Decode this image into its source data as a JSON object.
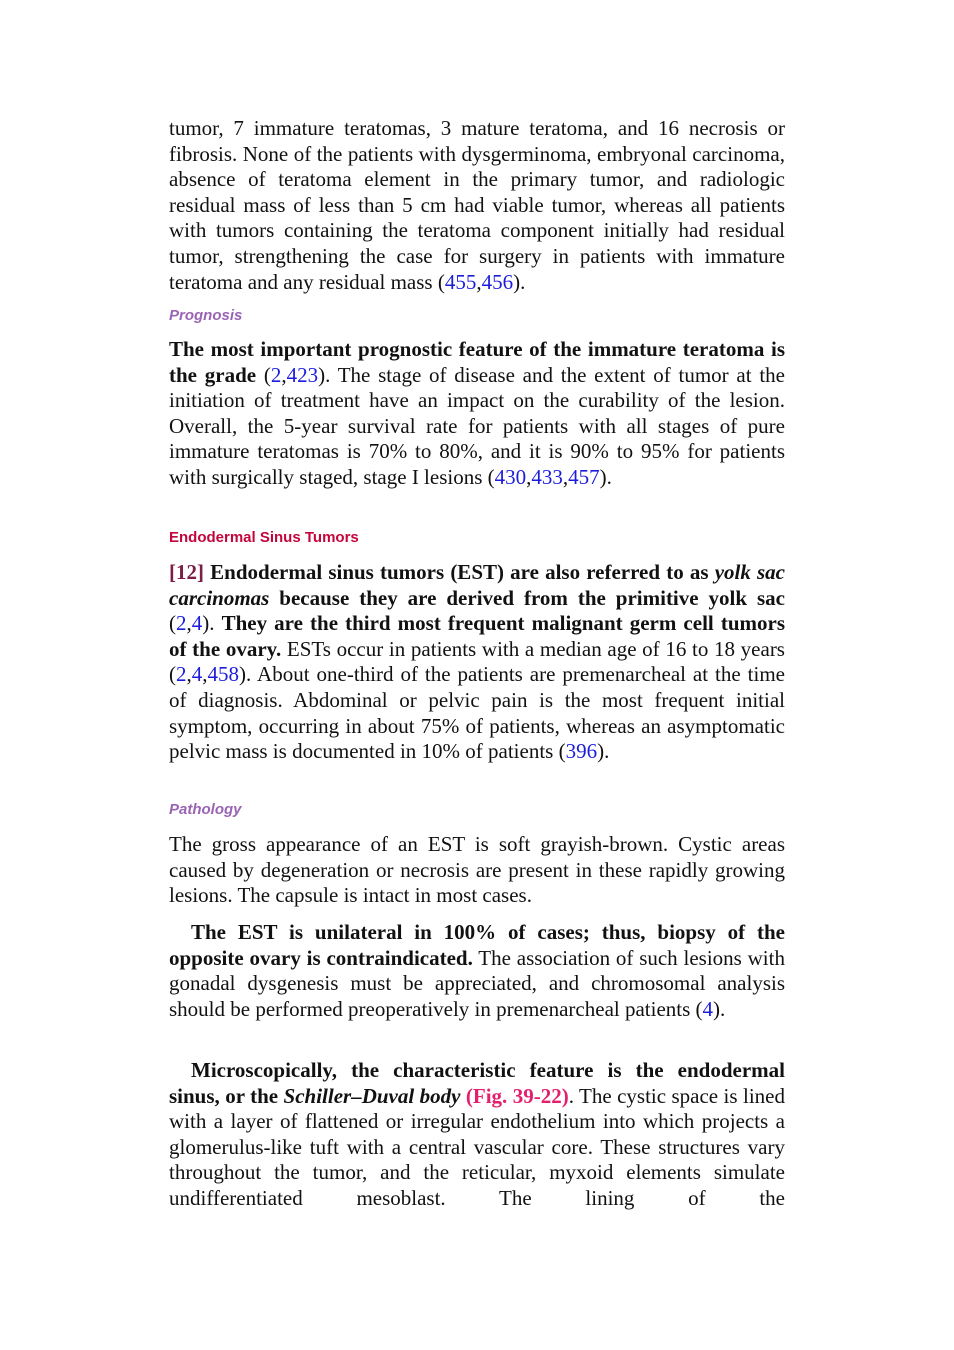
{
  "blocks": [
    [
      "tumor, 7 immature teratomas, 3 mature teratoma, and 16 necrosis or fibrosis. None of the patients with dysgerminoma, embryonal carcinoma, absence of teratoma element in the primary tumor, and radiologic residual mass of less than 5 cm had viable tumor, whereas all patients with tumors containing the teratoma component initially had residual tumor, strengthening the case for surgery in patients with immature teratoma and any residual mass (",
      "455",
      ",",
      "456",
      ")."
    ],
    [
      "Prognosis"
    ],
    [
      "The most important prognostic feature of the immature teratoma is the grade",
      " (",
      "2",
      ",",
      "423",
      "). The stage of disease and the extent of tumor at the initiation of treatment have an impact on the curability of the lesion. Overall, the 5-year survival rate for patients with all stages of pure immature teratomas is 70% to 80%, and it is 90% to 95% for patients with surgically staged, stage I lesions (",
      "430",
      ",",
      "433",
      ",",
      "457",
      ")."
    ],
    [
      "Endodermal Sinus Tumors"
    ],
    [
      "[12]",
      " Endodermal sinus tumors (EST) are also referred to as ",
      "yolk sac carcinomas",
      " because they are derived from the primitive yolk sac",
      " (",
      "2",
      ",",
      "4",
      "). ",
      "They are the third most frequent malignant germ cell tumors of the ovary.",
      " ESTs occur in patients with a median age of 16 to 18 years (",
      "2",
      ",",
      "4",
      ",",
      "458",
      "). About one-third of the patients are premenarcheal at the time of diagnosis. Abdominal or pelvic pain is the most frequent initial symptom, occurring in about 75% of patients, whereas an asymptomatic pelvic mass is documented in 10% of patients (",
      "396",
      ")."
    ],
    [
      "Pathology"
    ],
    [
      "The gross appearance of an EST is soft grayish-brown. Cystic areas caused by degeneration or necrosis are present in these rapidly growing lesions. The capsule is intact in most cases."
    ],
    [
      "The EST is unilateral in 100% of cases; thus, biopsy of the opposite ovary is contraindicated.",
      " The association of such lesions with gonadal dysgenesis must be appreciated, and chromosomal analysis should be performed preoperatively in premenarcheal patients (",
      "4",
      ")."
    ],
    [
      "Microscopically, the characteristic feature is the endodermal sinus, or the ",
      "Schiller–Duval body",
      " (Fig. 39-22)",
      ". The cystic space is lined with a layer of flattened or irregular endothelium into which projects a glomerulus-like tuft with a central vascular core. These structures vary throughout the tumor, and the reticular, myxoid elements simulate undifferentiated mesoblast. The lining of the"
    ]
  ]
}
